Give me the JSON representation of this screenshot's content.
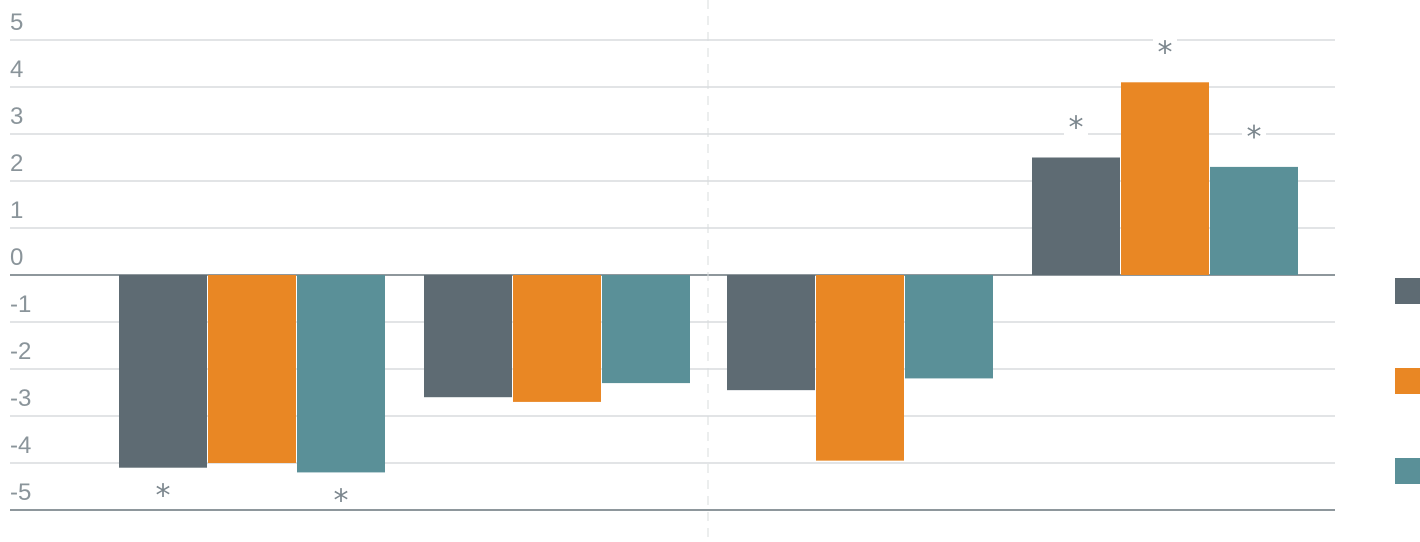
{
  "chart_data": {
    "type": "bar",
    "title": "",
    "xlabel": "",
    "ylabel": "",
    "ylim": [
      -5,
      5
    ],
    "yticks": [
      5,
      4,
      3,
      2,
      1,
      0,
      -1,
      -2,
      -3,
      -4,
      -5
    ],
    "grid": true,
    "legend_position": "right",
    "groups": 4,
    "series": [
      {
        "color": "#5e6b73",
        "values": [
          -4.1,
          -2.6,
          -2.45,
          2.5
        ]
      },
      {
        "color": "#e98724",
        "values": [
          -4.0,
          -2.7,
          -3.95,
          4.1
        ]
      },
      {
        "color": "#5a9098",
        "values": [
          -4.2,
          -2.3,
          -2.2,
          2.3
        ]
      }
    ],
    "significance_mark": "*",
    "significant": [
      [
        true,
        false,
        false,
        true
      ],
      [
        false,
        false,
        false,
        true
      ],
      [
        true,
        false,
        false,
        true
      ]
    ]
  }
}
